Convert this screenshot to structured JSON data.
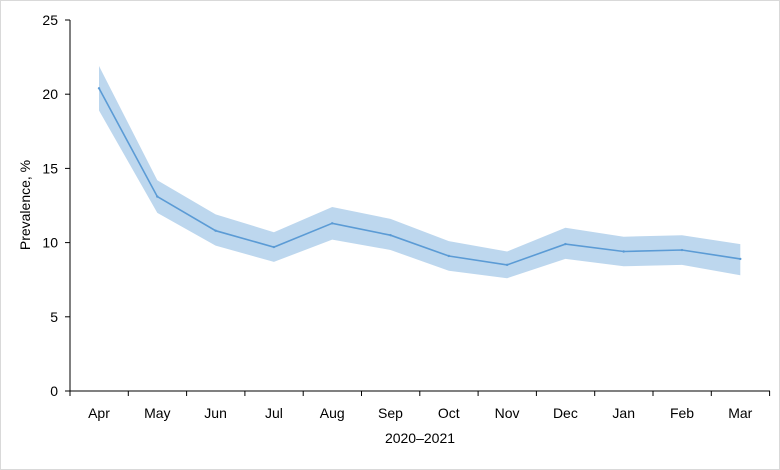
{
  "chart_data": {
    "type": "line",
    "title": "",
    "xlabel": "2020–2021",
    "ylabel": "Prevalence, %",
    "categories": [
      "Apr",
      "May",
      "Jun",
      "Jul",
      "Aug",
      "Sep",
      "Oct",
      "Nov",
      "Dec",
      "Jan",
      "Feb",
      "Mar"
    ],
    "ylim": [
      0,
      25
    ],
    "yticks": [
      "0",
      "5",
      "10",
      "15",
      "20",
      "25"
    ],
    "grid": false,
    "legend": "none",
    "series": [
      {
        "values": [
          20.4,
          13.1,
          10.8,
          9.7,
          11.3,
          10.5,
          9.1,
          8.5,
          9.9,
          9.4,
          9.5,
          8.9
        ],
        "lower": [
          18.9,
          12.0,
          9.8,
          8.7,
          10.2,
          9.5,
          8.1,
          7.6,
          8.9,
          8.4,
          8.5,
          7.8
        ],
        "upper": [
          21.9,
          14.2,
          11.9,
          10.7,
          12.4,
          11.6,
          10.1,
          9.4,
          11.0,
          10.4,
          10.5,
          9.9
        ]
      }
    ],
    "colors": {
      "line": "#5b9bd5",
      "band": "#bdd7ee",
      "axis": "#000000"
    }
  }
}
